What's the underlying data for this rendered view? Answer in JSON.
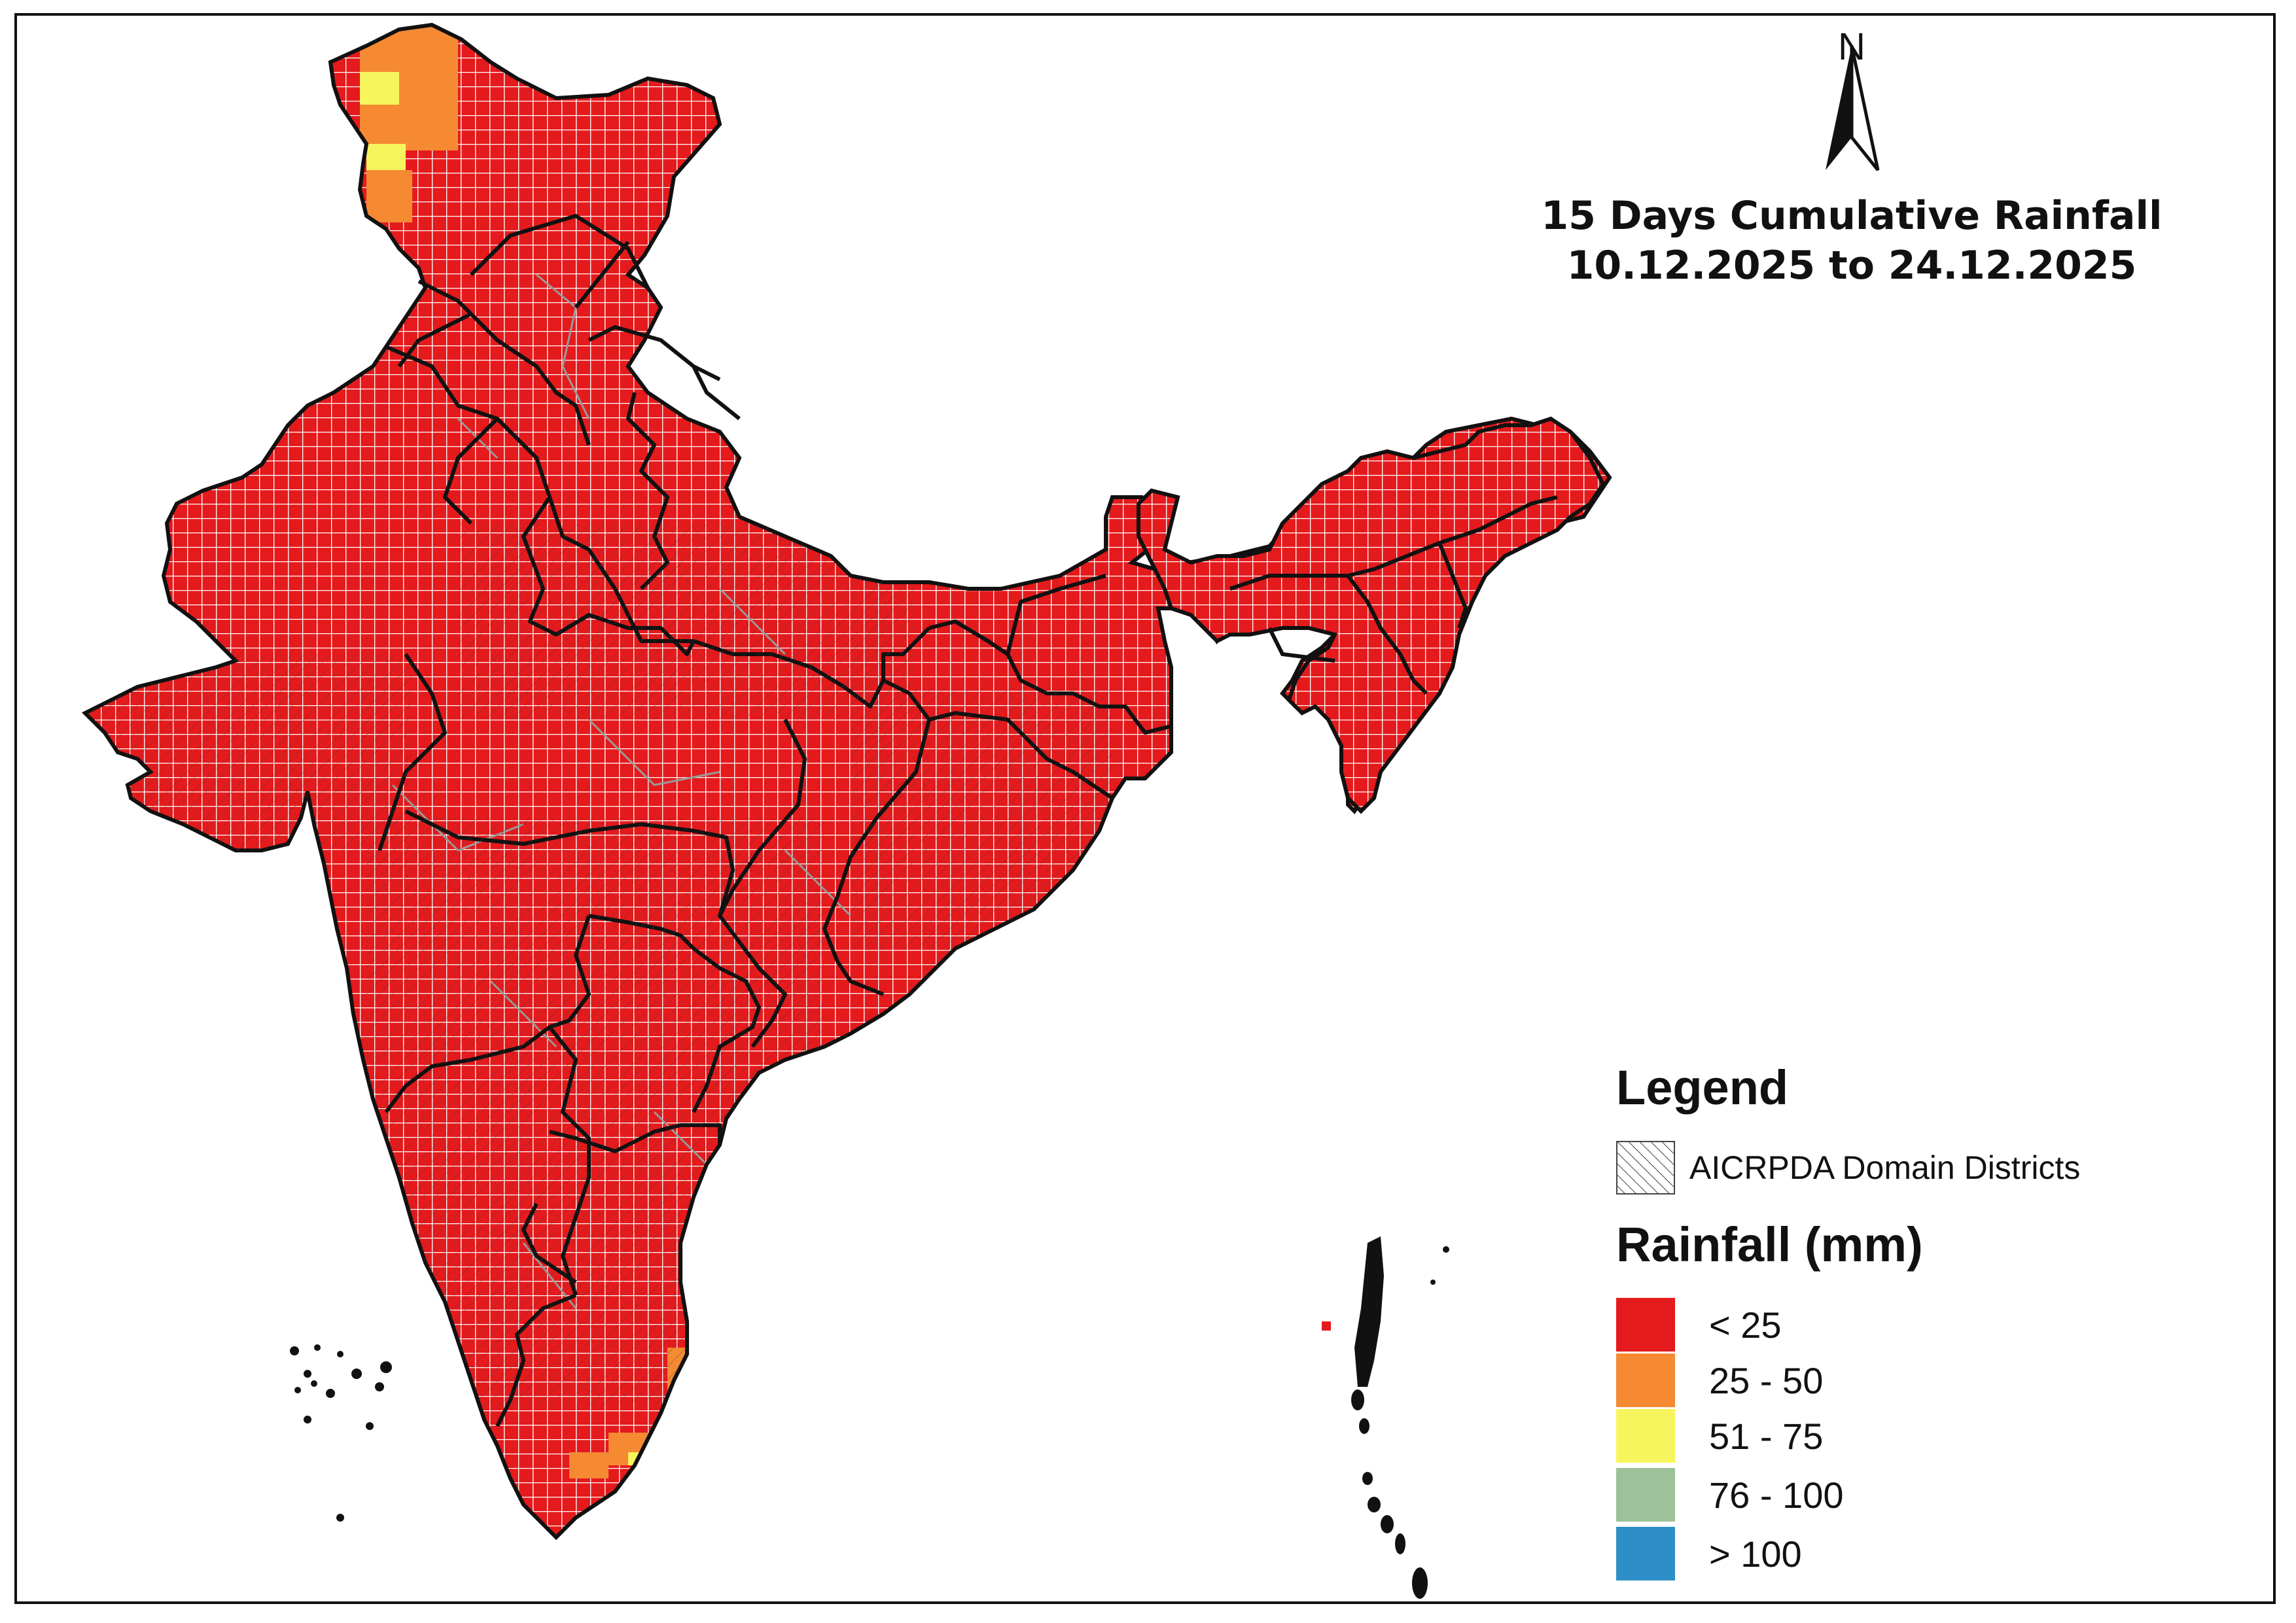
{
  "map": {
    "title_line1": "15 Days Cumulative Rainfall",
    "title_line2": "10.12.2025 to 24.12.2025",
    "north_label": "N"
  },
  "legend": {
    "title": "Legend",
    "hatch_label": "AICRPDA Domain Districts",
    "rainfall_title": "Rainfall (mm)",
    "classes": [
      {
        "label": "< 25",
        "color": "#e41a1c"
      },
      {
        "label": "25 - 50",
        "color": "#f58a33"
      },
      {
        "label": "51 - 75",
        "color": "#f7f55e"
      },
      {
        "label": "76 - 100",
        "color": "#9dc198"
      },
      {
        "label": "> 100",
        "color": "#2e8ec8"
      }
    ]
  },
  "colors": {
    "fill_dominant": "#e41a1c",
    "grid_line": "#ffffff",
    "district_line": "#9a9a9a",
    "state_border": "#111111"
  }
}
